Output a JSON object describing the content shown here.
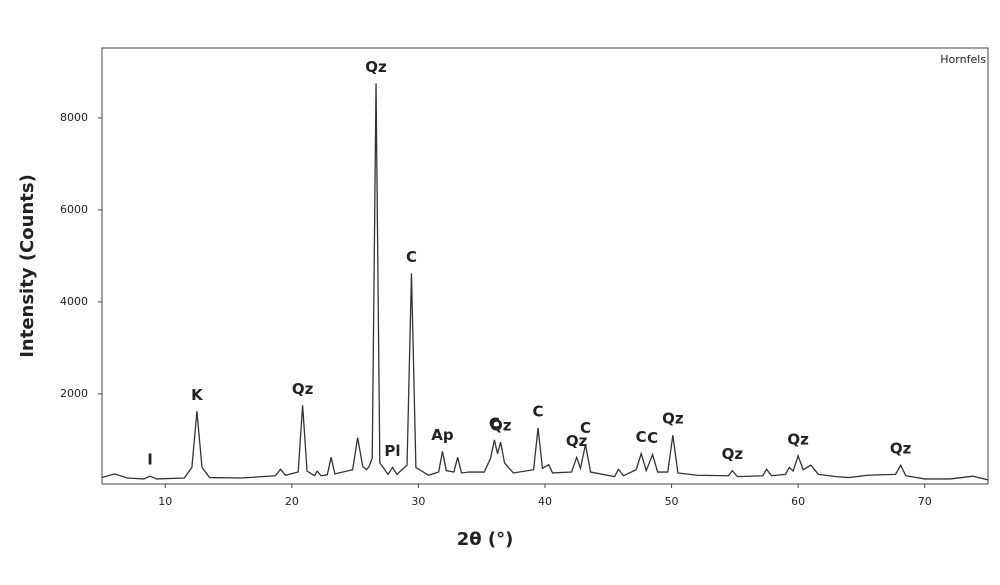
{
  "chart_data": {
    "type": "line",
    "xlabel": "2θ (°)",
    "ylabel": "Intensity (Counts)",
    "xlim": [
      5,
      75
    ],
    "ylim": [
      40,
      9520
    ],
    "xticks": [
      10,
      20,
      30,
      40,
      50,
      60,
      70
    ],
    "yticks": [
      2000,
      4000,
      6000,
      8000
    ],
    "legend": "top-right",
    "x": [
      5,
      6,
      7,
      8.3,
      8.8,
      9.3,
      11.5,
      12.1,
      12.5,
      12.9,
      13.5,
      16,
      18.7,
      19.1,
      19.5,
      20.5,
      20.85,
      21.2,
      21.8,
      22,
      22.3,
      22.8,
      23.1,
      23.4,
      24.8,
      25.2,
      25.6,
      25.9,
      26.1,
      26.35,
      26.65,
      26.95,
      27.6,
      27.95,
      28.3,
      29.1,
      29.45,
      29.8,
      30.8,
      31.6,
      31.9,
      32.2,
      32.8,
      33.1,
      33.4,
      34,
      35.2,
      35.7,
      36.0,
      36.25,
      36.5,
      36.8,
      37.5,
      39.1,
      39.45,
      39.8,
      40.3,
      40.6,
      42.1,
      42.5,
      42.8,
      43.2,
      43.6,
      45.5,
      45.8,
      46.2,
      47.2,
      47.6,
      48.0,
      48.5,
      48.9,
      49.7,
      50.1,
      50.5,
      52,
      54.5,
      54.8,
      55.2,
      57.2,
      57.5,
      57.9,
      59,
      59.3,
      59.6,
      60.0,
      60.4,
      61.0,
      61.6,
      63,
      64,
      65.5,
      67.7,
      68.1,
      68.5,
      70,
      72,
      73.8,
      75
    ],
    "series": [
      {
        "name": "Hornfels",
        "color": "#333333",
        "values": [
          180,
          260,
          170,
          150,
          210,
          150,
          170,
          400,
          1620,
          400,
          180,
          170,
          220,
          360,
          230,
          300,
          1750,
          320,
          220,
          320,
          220,
          240,
          620,
          260,
          350,
          1050,
          420,
          350,
          420,
          600,
          8750,
          500,
          250,
          400,
          250,
          450,
          4620,
          400,
          230,
          300,
          750,
          330,
          300,
          620,
          280,
          300,
          300,
          600,
          1000,
          700,
          950,
          500,
          280,
          350,
          1260,
          380,
          460,
          280,
          300,
          620,
          380,
          900,
          300,
          200,
          360,
          220,
          350,
          700,
          330,
          680,
          300,
          300,
          1100,
          280,
          230,
          220,
          330,
          200,
          220,
          360,
          220,
          250,
          400,
          320,
          650,
          350,
          450,
          250,
          200,
          180,
          230,
          250,
          450,
          220,
          150,
          150,
          210,
          130
        ]
      }
    ],
    "annotations": [
      {
        "text": "I",
        "x": 8.8
      },
      {
        "text": "K",
        "x": 12.5
      },
      {
        "text": "Qz",
        "x": 20.85
      },
      {
        "text": "Qz",
        "x": 26.65
      },
      {
        "text": "Pl",
        "x": 27.95
      },
      {
        "text": "C",
        "x": 29.45
      },
      {
        "text": "Ap",
        "x": 31.9
      },
      {
        "text": "C",
        "x": 36.0
      },
      {
        "text": "Qz",
        "x": 36.5
      },
      {
        "text": "C",
        "x": 39.45
      },
      {
        "text": "Qz",
        "x": 42.5
      },
      {
        "text": "C",
        "x": 43.2
      },
      {
        "text": "C",
        "x": 47.6
      },
      {
        "text": "C",
        "x": 48.5
      },
      {
        "text": "Qz",
        "x": 50.1
      },
      {
        "text": "Qz",
        "x": 54.8
      },
      {
        "text": "Qz",
        "x": 60.0
      },
      {
        "text": "Qz",
        "x": 68.1
      }
    ]
  }
}
